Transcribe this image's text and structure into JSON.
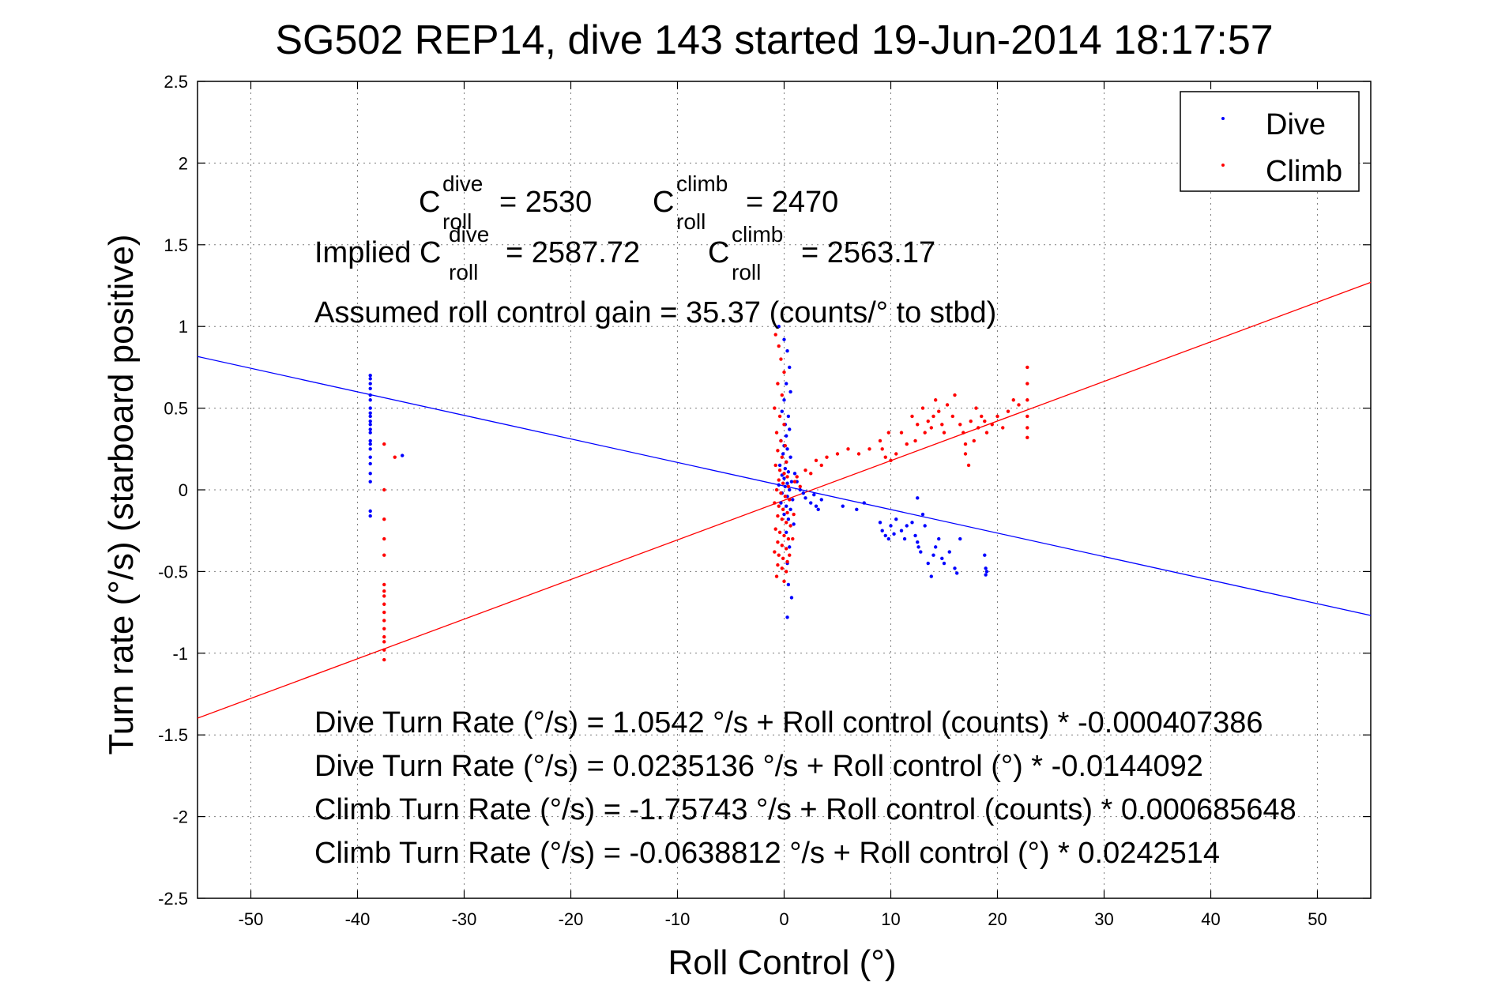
{
  "chart_data": {
    "type": "scatter",
    "title": "SG502 REP14, dive 143 started 19-Jun-2014 18:17:57",
    "xlabel": "Roll Control (°)",
    "ylabel": "Turn rate (°/s) (starboard positive)",
    "xlim": [
      -55,
      55
    ],
    "ylim": [
      -2.5,
      2.5
    ],
    "grid": true,
    "legend_position": "top-right",
    "x_ticks": [
      -50,
      -40,
      -30,
      -20,
      -10,
      0,
      10,
      20,
      30,
      40,
      50
    ],
    "y_ticks": [
      -2.5,
      -2,
      -1.5,
      -1,
      -0.5,
      0,
      0.5,
      1,
      1.5,
      2,
      2.5
    ],
    "x_tick_labels": [
      "-50",
      "-40",
      "-30",
      "-20",
      "-10",
      "0",
      "10",
      "20",
      "30",
      "40",
      "50"
    ],
    "y_tick_labels": [
      "-2.5",
      "-2",
      "-1.5",
      "-1",
      "-0.5",
      "0",
      "0.5",
      "1",
      "1.5",
      "2",
      "2.5"
    ],
    "colors": {
      "dive": "#0000ff",
      "climb": "#ff0000"
    },
    "series": [
      {
        "name": "Dive",
        "color": "#0000ff",
        "marker": "dot",
        "points": [
          [
            -38.8,
            0.7
          ],
          [
            -38.8,
            0.68
          ],
          [
            -38.8,
            0.65
          ],
          [
            -38.8,
            0.62
          ],
          [
            -38.8,
            0.58
          ],
          [
            -38.8,
            0.55
          ],
          [
            -38.8,
            0.5
          ],
          [
            -38.8,
            0.47
          ],
          [
            -38.8,
            0.45
          ],
          [
            -38.8,
            0.42
          ],
          [
            -38.8,
            0.4
          ],
          [
            -38.8,
            0.37
          ],
          [
            -38.8,
            0.35
          ],
          [
            -38.8,
            0.3
          ],
          [
            -38.8,
            0.28
          ],
          [
            -38.8,
            0.25
          ],
          [
            -38.8,
            0.2
          ],
          [
            -38.8,
            0.16
          ],
          [
            -38.8,
            0.1
          ],
          [
            -38.8,
            0.05
          ],
          [
            -38.8,
            -0.13
          ],
          [
            -38.8,
            -0.16
          ],
          [
            -35.8,
            0.21
          ],
          [
            -0.5,
            1.0
          ],
          [
            0.0,
            0.92
          ],
          [
            0.3,
            0.85
          ],
          [
            0.5,
            0.75
          ],
          [
            0.2,
            0.65
          ],
          [
            0.6,
            0.6
          ],
          [
            0.0,
            0.55
          ],
          [
            -0.2,
            0.48
          ],
          [
            0.4,
            0.45
          ],
          [
            0.1,
            0.4
          ],
          [
            0.5,
            0.37
          ],
          [
            0.2,
            0.33
          ],
          [
            -0.3,
            0.3
          ],
          [
            0.0,
            0.27
          ],
          [
            0.3,
            0.25
          ],
          [
            -0.1,
            0.22
          ],
          [
            0.6,
            0.2
          ],
          [
            0.2,
            0.17
          ],
          [
            -0.4,
            0.15
          ],
          [
            0.1,
            0.13
          ],
          [
            0.4,
            0.11
          ],
          [
            -0.2,
            0.09
          ],
          [
            0.0,
            0.07
          ],
          [
            0.7,
            0.05
          ],
          [
            0.3,
            0.04
          ],
          [
            -0.5,
            0.03
          ],
          [
            0.1,
            0.02
          ],
          [
            0.5,
            0.0
          ],
          [
            -0.2,
            -0.02
          ],
          [
            0.3,
            -0.04
          ],
          [
            0.8,
            -0.06
          ],
          [
            -0.3,
            -0.08
          ],
          [
            0.2,
            -0.1
          ],
          [
            0.6,
            -0.12
          ],
          [
            0.0,
            -0.15
          ],
          [
            0.4,
            -0.18
          ],
          [
            0.9,
            -0.21
          ],
          [
            0.2,
            -0.26
          ],
          [
            0.5,
            -0.35
          ],
          [
            0.3,
            -0.45
          ],
          [
            0.4,
            -0.58
          ],
          [
            0.7,
            -0.66
          ],
          [
            0.3,
            -0.78
          ],
          [
            1.0,
            0.1
          ],
          [
            1.2,
            0.05
          ],
          [
            1.5,
            0.0
          ],
          [
            1.8,
            -0.02
          ],
          [
            2.0,
            -0.05
          ],
          [
            2.5,
            -0.08
          ],
          [
            3.0,
            -0.1
          ],
          [
            3.2,
            -0.12
          ],
          [
            3.5,
            -0.06
          ],
          [
            2.8,
            -0.03
          ],
          [
            5.5,
            -0.1
          ],
          [
            6.8,
            -0.12
          ],
          [
            7.5,
            -0.08
          ],
          [
            9.0,
            -0.2
          ],
          [
            9.2,
            -0.25
          ],
          [
            9.5,
            -0.28
          ],
          [
            9.8,
            -0.3
          ],
          [
            10.0,
            -0.22
          ],
          [
            10.3,
            -0.27
          ],
          [
            10.5,
            -0.18
          ],
          [
            11.0,
            -0.25
          ],
          [
            11.3,
            -0.3
          ],
          [
            11.5,
            -0.22
          ],
          [
            12.0,
            -0.2
          ],
          [
            12.3,
            -0.28
          ],
          [
            12.5,
            -0.32
          ],
          [
            12.6,
            -0.35
          ],
          [
            12.8,
            -0.38
          ],
          [
            12.5,
            -0.05
          ],
          [
            13.0,
            -0.15
          ],
          [
            13.2,
            -0.22
          ],
          [
            13.5,
            -0.45
          ],
          [
            13.8,
            -0.53
          ],
          [
            14.0,
            -0.4
          ],
          [
            14.2,
            -0.35
          ],
          [
            14.5,
            -0.3
          ],
          [
            14.8,
            -0.42
          ],
          [
            15.0,
            -0.45
          ],
          [
            15.5,
            -0.38
          ],
          [
            16.0,
            -0.48
          ],
          [
            16.2,
            -0.51
          ],
          [
            16.5,
            -0.3
          ],
          [
            18.8,
            -0.4
          ],
          [
            18.9,
            -0.48
          ],
          [
            18.9,
            -0.52
          ],
          [
            19.0,
            -0.5
          ]
        ]
      },
      {
        "name": "Climb",
        "color": "#ff0000",
        "marker": "dot",
        "points": [
          [
            -37.5,
            0.28
          ],
          [
            -37.5,
            0.0
          ],
          [
            -37.5,
            -0.18
          ],
          [
            -37.5,
            -0.3
          ],
          [
            -37.5,
            -0.4
          ],
          [
            -37.5,
            -0.58
          ],
          [
            -37.5,
            -0.62
          ],
          [
            -37.5,
            -0.65
          ],
          [
            -37.5,
            -0.7
          ],
          [
            -37.5,
            -0.75
          ],
          [
            -37.5,
            -0.8
          ],
          [
            -37.5,
            -0.85
          ],
          [
            -37.5,
            -0.9
          ],
          [
            -37.5,
            -0.93
          ],
          [
            -37.5,
            -0.98
          ],
          [
            -37.5,
            -1.04
          ],
          [
            -36.5,
            0.2
          ],
          [
            -0.8,
            0.95
          ],
          [
            -0.5,
            0.88
          ],
          [
            -0.3,
            0.8
          ],
          [
            0.0,
            0.72
          ],
          [
            -0.6,
            0.65
          ],
          [
            -0.2,
            0.58
          ],
          [
            -0.9,
            0.5
          ],
          [
            -0.4,
            0.45
          ],
          [
            0.0,
            0.4
          ],
          [
            -0.7,
            0.35
          ],
          [
            -0.3,
            0.3
          ],
          [
            0.1,
            0.27
          ],
          [
            -0.6,
            0.24
          ],
          [
            -0.2,
            0.2
          ],
          [
            0.2,
            0.17
          ],
          [
            -0.8,
            0.15
          ],
          [
            -0.4,
            0.12
          ],
          [
            0.0,
            0.1
          ],
          [
            0.3,
            0.08
          ],
          [
            -0.5,
            0.06
          ],
          [
            -0.1,
            0.04
          ],
          [
            0.4,
            0.02
          ],
          [
            -0.7,
            0.0
          ],
          [
            -0.3,
            -0.02
          ],
          [
            0.1,
            -0.04
          ],
          [
            0.5,
            -0.06
          ],
          [
            -0.9,
            -0.08
          ],
          [
            -0.5,
            -0.1
          ],
          [
            -0.1,
            -0.12
          ],
          [
            0.3,
            -0.14
          ],
          [
            -0.6,
            -0.16
          ],
          [
            -0.2,
            -0.18
          ],
          [
            0.2,
            -0.2
          ],
          [
            0.6,
            -0.22
          ],
          [
            -0.8,
            -0.24
          ],
          [
            -0.4,
            -0.26
          ],
          [
            0.0,
            -0.28
          ],
          [
            0.4,
            -0.3
          ],
          [
            -0.6,
            -0.32
          ],
          [
            -0.2,
            -0.34
          ],
          [
            0.2,
            -0.36
          ],
          [
            -0.9,
            -0.38
          ],
          [
            -0.5,
            -0.4
          ],
          [
            -0.1,
            -0.42
          ],
          [
            0.3,
            -0.44
          ],
          [
            -0.6,
            -0.46
          ],
          [
            -0.2,
            -0.48
          ],
          [
            0.2,
            -0.5
          ],
          [
            -0.7,
            -0.53
          ],
          [
            0.0,
            -0.56
          ],
          [
            0.5,
            -0.4
          ],
          [
            0.8,
            -0.3
          ],
          [
            0.9,
            -0.15
          ],
          [
            1.0,
            0.05
          ],
          [
            1.2,
            0.08
          ],
          [
            1.5,
            0.02
          ],
          [
            2.0,
            0.12
          ],
          [
            2.5,
            0.1
          ],
          [
            3.0,
            0.18
          ],
          [
            3.5,
            0.15
          ],
          [
            4.0,
            0.2
          ],
          [
            5.0,
            0.22
          ],
          [
            6.0,
            0.25
          ],
          [
            7.0,
            0.22
          ],
          [
            8.0,
            0.25
          ],
          [
            9.0,
            0.3
          ],
          [
            9.2,
            0.25
          ],
          [
            9.5,
            0.2
          ],
          [
            9.8,
            0.35
          ],
          [
            10.0,
            0.18
          ],
          [
            10.5,
            0.22
          ],
          [
            11.0,
            0.35
          ],
          [
            11.5,
            0.28
          ],
          [
            12.0,
            0.45
          ],
          [
            12.3,
            0.3
          ],
          [
            12.5,
            0.4
          ],
          [
            13.0,
            0.5
          ],
          [
            13.2,
            0.35
          ],
          [
            13.5,
            0.42
          ],
          [
            13.8,
            0.38
          ],
          [
            14.0,
            0.45
          ],
          [
            14.2,
            0.55
          ],
          [
            14.5,
            0.48
          ],
          [
            14.8,
            0.4
          ],
          [
            15.0,
            0.35
          ],
          [
            15.3,
            0.52
          ],
          [
            15.8,
            0.45
          ],
          [
            16.0,
            0.58
          ],
          [
            16.5,
            0.4
          ],
          [
            16.8,
            0.35
          ],
          [
            17.0,
            0.28
          ],
          [
            17.0,
            0.22
          ],
          [
            17.3,
            0.15
          ],
          [
            17.5,
            0.42
          ],
          [
            17.8,
            0.3
          ],
          [
            18.0,
            0.5
          ],
          [
            18.2,
            0.38
          ],
          [
            18.5,
            0.45
          ],
          [
            18.8,
            0.42
          ],
          [
            19.0,
            0.35
          ],
          [
            19.5,
            0.4
          ],
          [
            20.0,
            0.45
          ],
          [
            20.5,
            0.38
          ],
          [
            21.0,
            0.48
          ],
          [
            21.5,
            0.55
          ],
          [
            22.0,
            0.52
          ],
          [
            22.8,
            0.75
          ],
          [
            22.8,
            0.65
          ],
          [
            22.8,
            0.55
          ],
          [
            22.8,
            0.45
          ],
          [
            22.8,
            0.38
          ],
          [
            22.8,
            0.32
          ]
        ]
      }
    ],
    "fit_lines": [
      {
        "series": "Dive",
        "color": "#0000ff",
        "intercept": 0.0235136,
        "slope": -0.0144092
      },
      {
        "series": "Climb",
        "color": "#ff0000",
        "intercept": -0.0638812,
        "slope": 0.0242514
      }
    ],
    "annotations": {
      "c_roll_line": {
        "c_symbol": "C",
        "sub": "roll",
        "dive_sup": "dive",
        "climb_sup": "climb",
        "dive_value": "= 2530",
        "climb_value": "= 2470"
      },
      "implied_line": {
        "prefix": "Implied C",
        "c_symbol": "C",
        "sub": "roll",
        "dive_sup": "dive",
        "climb_sup": "climb",
        "dive_value": "= 2587.72",
        "climb_value": "= 2563.17"
      },
      "gain_text": "Assumed roll control gain = 35.37 (counts/° to stbd)",
      "equations": [
        "Dive Turn Rate (°/s) = 1.0542 °/s + Roll control (counts) * -0.000407386",
        "Dive Turn Rate (°/s) = 0.0235136 °/s + Roll control (°) * -0.0144092",
        "Climb Turn Rate (°/s) = -1.75743 °/s + Roll control (counts) * 0.000685648",
        "Climb Turn Rate (°/s) = -0.0638812 °/s + Roll control (°) * 0.0242514"
      ]
    },
    "legend": [
      {
        "label": "Dive",
        "color": "#0000ff"
      },
      {
        "label": "Climb",
        "color": "#ff0000"
      }
    ]
  }
}
